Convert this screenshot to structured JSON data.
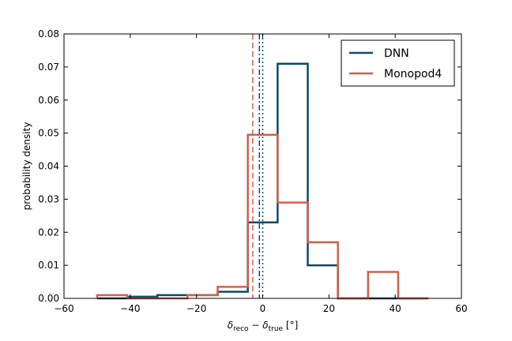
{
  "chart_data": {
    "type": "histogram-step",
    "xlabel_parts": [
      "δ",
      "reco",
      " − δ",
      "true",
      "  [°]"
    ],
    "ylabel": "probability density",
    "xlim": [
      -60,
      60
    ],
    "ylim": [
      0,
      0.08
    ],
    "xticks": [
      -60,
      -40,
      -20,
      0,
      20,
      40,
      60
    ],
    "xtick_labels": [
      "−60",
      "−40",
      "−20",
      "0",
      "20",
      "40",
      "60"
    ],
    "yticks": [
      0.0,
      0.01,
      0.02,
      0.03,
      0.04,
      0.05,
      0.06,
      0.07,
      0.08
    ],
    "ytick_labels": [
      "0.00",
      "0.01",
      "0.02",
      "0.03",
      "0.04",
      "0.05",
      "0.06",
      "0.07",
      "0.08"
    ],
    "legend_position": "top-right",
    "series": [
      {
        "name": "DNN",
        "color": "#0e4a66",
        "edges": [
          -50,
          -40.9,
          -31.8,
          -22.7,
          -13.6,
          -4.5,
          4.5,
          13.6,
          22.7,
          31.8,
          40.9,
          50
        ],
        "values": [
          0.0,
          0.0005,
          0.001,
          0.001,
          0.002,
          0.023,
          0.071,
          0.01,
          0.0,
          0.0,
          0.0
        ],
        "marker_line_x": 0.0,
        "marker_line_style": "dotted"
      },
      {
        "name": "Monopod4",
        "color": "#d0604c",
        "edges": [
          -50,
          -40.9,
          -31.8,
          -22.7,
          -13.6,
          -4.5,
          4.5,
          13.6,
          22.7,
          31.8,
          40.9,
          50
        ],
        "values": [
          0.001,
          0.0,
          0.0,
          0.001,
          0.0035,
          0.0495,
          0.029,
          0.017,
          0.0,
          0.008,
          0.0
        ],
        "marker_line_x": -3.0,
        "marker_line_style": "dashed"
      }
    ],
    "extra_lines": [
      {
        "x": -1.0,
        "color": "#0e4a66",
        "style": "dashdot"
      }
    ]
  }
}
